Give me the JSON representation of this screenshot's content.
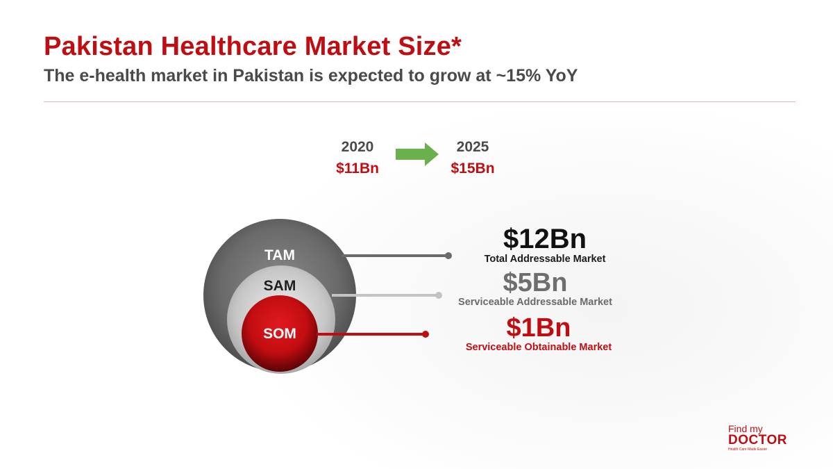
{
  "slide": {
    "title": "Pakistan Healthcare Market Size*",
    "subtitle": "The e-health market in Pakistan is expected to grow at ~15% YoY"
  },
  "growth": {
    "from": {
      "year": "2020",
      "value": "$11Bn"
    },
    "to": {
      "year": "2025",
      "value": "$15Bn"
    },
    "arrow_icon": "right-arrow-icon"
  },
  "circles": {
    "tam": "TAM",
    "sam": "SAM",
    "som": "SOM"
  },
  "metrics": {
    "tam": {
      "value": "$12Bn",
      "label": "Total Addressable Market"
    },
    "sam": {
      "value": "$5Bn",
      "label": "Serviceable Addressable Market"
    },
    "som": {
      "value": "$1Bn",
      "label": "Serviceable Obtainable Market"
    }
  },
  "logo": {
    "line1": "Find my",
    "line2": "DOCTOR",
    "tagline": "Health Care Made Easier"
  },
  "colors": {
    "brand_red": "#c00d12",
    "arrow_green": "#6ab04c",
    "tam_gray": "#6f6f6f",
    "sam_gray": "#bdbdbd"
  }
}
